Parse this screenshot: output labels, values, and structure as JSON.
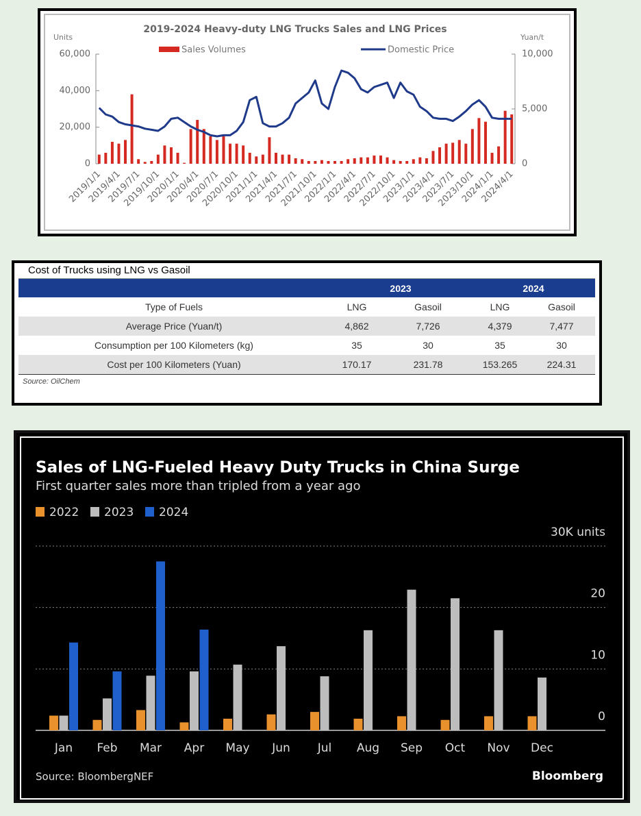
{
  "chart_data": [
    {
      "type": "combo",
      "title": "2019-2024 Heavy-duty LNG Trucks Sales and LNG Prices",
      "y_label": "Units",
      "y2_label": "Yuan/t",
      "categories": [
        "2019/1/1",
        null,
        null,
        "2019/4/1",
        null,
        null,
        "2019/7/1",
        null,
        null,
        "2019/10/1",
        null,
        null,
        "2020/1/1",
        null,
        null,
        "2020/4/1",
        null,
        null,
        "2020/7/1",
        null,
        null,
        "2020/10/1",
        null,
        null,
        "2021/1/1",
        null,
        null,
        "2021/4/1",
        null,
        null,
        "2021/7/1",
        null,
        null,
        "2021/10/1",
        null,
        null,
        "2022/1/1",
        null,
        null,
        "2022/4/1",
        null,
        null,
        "2022/7/1",
        null,
        null,
        "2022/10/1",
        null,
        null,
        "2023/1/1",
        null,
        null,
        "2023/4/1",
        null,
        null,
        "2023/7/1",
        null,
        null,
        "2023/10/1",
        null,
        null,
        "2024/1/1",
        null,
        null,
        "2024/4/1"
      ],
      "series": [
        {
          "name": "Sales Volumes",
          "type": "bar",
          "color": "#d42a22",
          "values": [
            5000,
            6000,
            12000,
            11000,
            13000,
            38000,
            2500,
            1000,
            1500,
            5000,
            10000,
            9000,
            6000,
            500,
            19000,
            24000,
            19000,
            15000,
            13000,
            15000,
            11000,
            11000,
            10000,
            6000,
            4000,
            5000,
            14500,
            6000,
            5000,
            5000,
            3000,
            2500,
            1500,
            1500,
            2000,
            1500,
            1500,
            1500,
            2500,
            3000,
            3500,
            3500,
            4500,
            4500,
            3500,
            2000,
            1500,
            1500,
            2500,
            3500,
            3000,
            7000,
            9000,
            11000,
            11500,
            13000,
            11000,
            19000,
            25000,
            23000,
            6000,
            9500,
            29000,
            27000
          ]
        },
        {
          "name": "Domestic Price",
          "type": "line",
          "axis": "y2",
          "color": "#1f3a8a",
          "values": [
            5100,
            4500,
            4300,
            3800,
            3600,
            3500,
            3400,
            3200,
            3100,
            3000,
            3400,
            4100,
            4200,
            3800,
            3400,
            3100,
            2900,
            2600,
            2500,
            2600,
            2600,
            3000,
            3800,
            5800,
            6100,
            3700,
            3400,
            3400,
            3700,
            4200,
            5500,
            6000,
            6500,
            7600,
            5500,
            5000,
            7000,
            8500,
            8300,
            7800,
            6800,
            6500,
            7000,
            7200,
            7400,
            6000,
            7400,
            6600,
            6300,
            5200,
            4800,
            4200,
            4100,
            4100,
            3900,
            4300,
            4800,
            5400,
            5800,
            5200,
            4200,
            4100,
            4100,
            4100
          ]
        }
      ],
      "ylim": [
        0,
        60000
      ],
      "yticks": [
        0,
        {
          "value": 20000,
          "label": "20,000"
        },
        {
          "value": 40000,
          "label": "40,000"
        },
        {
          "value": 60000,
          "label": "60,000"
        }
      ],
      "y2lim": [
        0,
        10000
      ],
      "y2ticks": [
        0,
        {
          "value": 5000,
          "label": "5,000"
        },
        {
          "value": 10000,
          "label": "10,000"
        }
      ]
    },
    {
      "type": "bar",
      "title": "Sales of LNG-Fueled Heavy Duty Trucks in China Surge",
      "subtitle": "First quarter sales more than tripled from a year ago",
      "categories": [
        "Jan",
        "Feb",
        "Mar",
        "Apr",
        "May",
        "Jun",
        "Jul",
        "Aug",
        "Sep",
        "Oct",
        "Nov",
        "Dec"
      ],
      "series": [
        {
          "name": "2022",
          "color": "#e8912d",
          "values": [
            2.4,
            1.7,
            3.3,
            1.3,
            1.9,
            2.6,
            3.0,
            1.9,
            2.3,
            1.7,
            2.3,
            2.3
          ]
        },
        {
          "name": "2023",
          "color": "#bdbdbd",
          "values": [
            2.4,
            5.2,
            8.9,
            9.6,
            10.7,
            13.7,
            8.8,
            16.3,
            22.9,
            21.5,
            16.3,
            8.6
          ]
        },
        {
          "name": "2024",
          "color": "#2060cc",
          "values": [
            14.3,
            9.6,
            27.5,
            16.4,
            null,
            null,
            null,
            null,
            null,
            null,
            null,
            null
          ]
        }
      ],
      "ylim": [
        0,
        30
      ],
      "yticks": [
        0,
        10,
        20,
        {
          "value": 30,
          "label": "30K units"
        }
      ],
      "grid": true,
      "source": "Source: BloombergNEF",
      "brand": "Bloomberg"
    }
  ],
  "table": {
    "title": "Cost of Trucks using LNG vs Gasoil",
    "years": [
      "2023",
      "2024"
    ],
    "header": [
      "Type of Fuels",
      "LNG",
      "Gasoil",
      "LNG",
      "Gasoil"
    ],
    "rows": [
      [
        "Average Price (Yuan/t)",
        "4,862",
        "7,726",
        "4,379",
        "7,477"
      ],
      [
        "Consumption per 100 Kilometers (kg)",
        "35",
        "30",
        "35",
        "30"
      ],
      [
        "Cost per 100 Kilometers (Yuan)",
        "170.17",
        "231.78",
        "153.265",
        "224.31"
      ]
    ],
    "source": "Source: OilChem"
  }
}
